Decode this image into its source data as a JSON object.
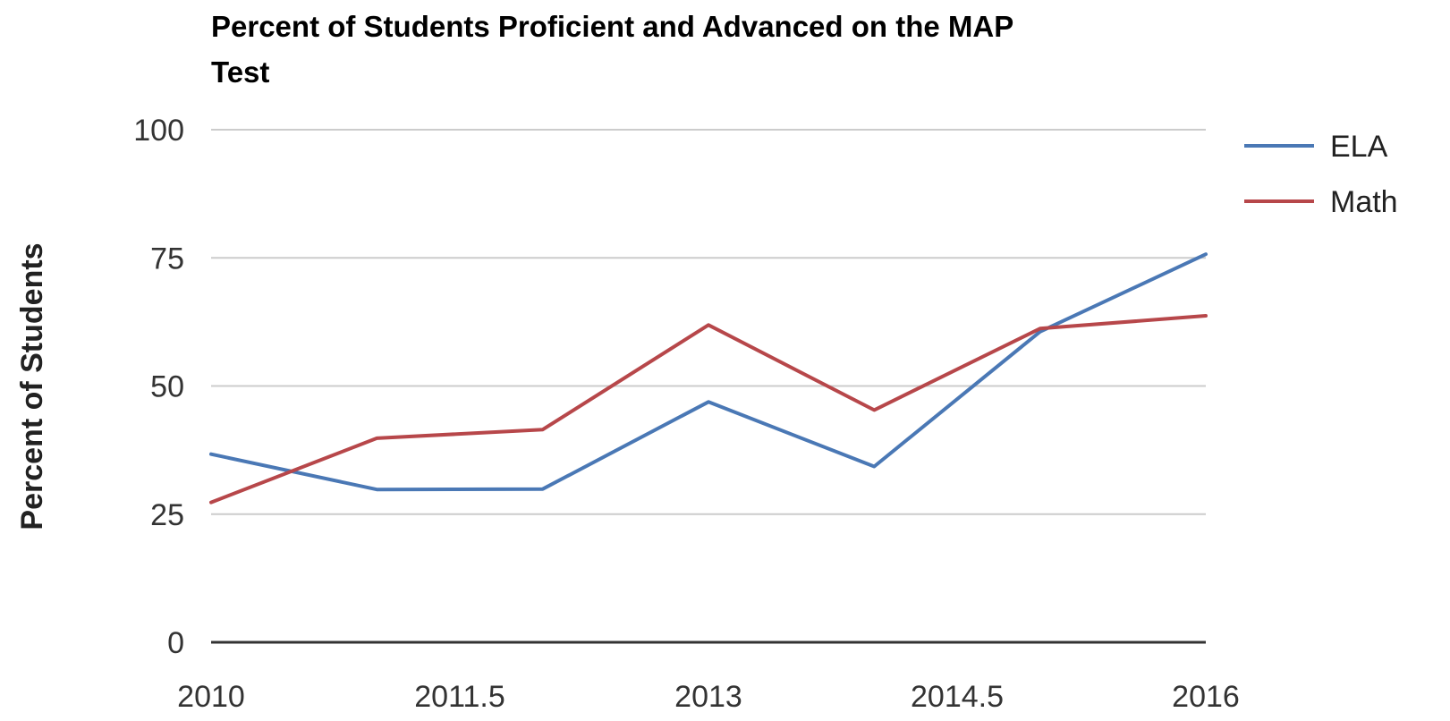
{
  "chart_data": {
    "type": "line",
    "title": "Percent of Students Proficient and Advanced on the MAP Test",
    "title_lines": [
      "Percent of Students Proficient and Advanced on the MAP",
      "Test"
    ],
    "xlabel": "",
    "ylabel": "Percent of Students",
    "x": [
      2010,
      2011,
      2012,
      2013,
      2014,
      2015,
      2016
    ],
    "xlim": [
      2010,
      2016
    ],
    "ylim": [
      0,
      100
    ],
    "xticks": [
      "2010",
      "2011.5",
      "2013",
      "2014.5",
      "2016"
    ],
    "xtick_values": [
      2010,
      2011.5,
      2013,
      2014.5,
      2016
    ],
    "yticks": [
      "0",
      "25",
      "50",
      "75",
      "100"
    ],
    "ytick_values": [
      0,
      25,
      50,
      75,
      100
    ],
    "grid": true,
    "legend_position": "right",
    "series": [
      {
        "name": "ELA",
        "color": "#4a78b5",
        "values": [
          36.7,
          29.8,
          29.9,
          46.9,
          34.3,
          60.6,
          75.7
        ]
      },
      {
        "name": "Math",
        "color": "#b7474a",
        "values": [
          27.3,
          39.8,
          41.5,
          61.9,
          45.3,
          61.2,
          63.7
        ]
      }
    ]
  }
}
